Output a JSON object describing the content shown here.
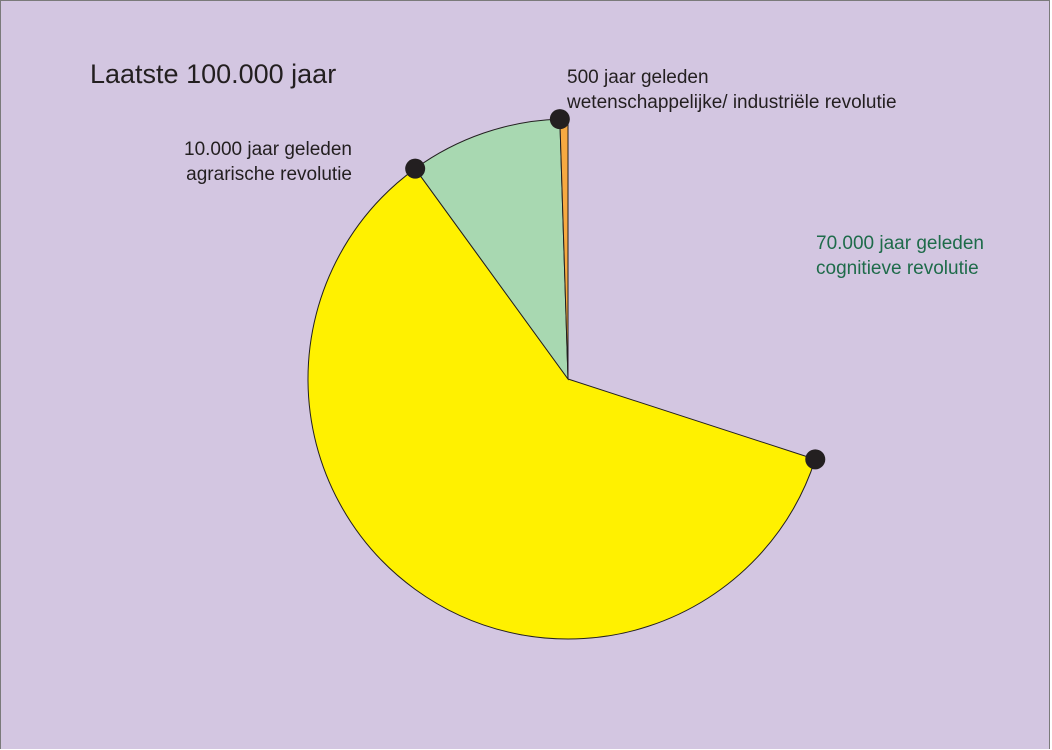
{
  "title": "Laatste 100.000 jaar",
  "colors": {
    "background": "#d3c6e1",
    "before_cognitive": "#d3c6e1",
    "cognitive_to_agrarian": "#fff100",
    "agrarian_to_scientific": "#a8d8b1",
    "scientific_to_now": "#f7a941",
    "marker": "#231f20",
    "cognitive_label": "#1e6b4a"
  },
  "timeline": {
    "total_years": 100000,
    "segments": [
      {
        "id": "before_cognitive",
        "from_years_ago": 100000,
        "to_years_ago": 70000
      },
      {
        "id": "cognitive_to_agrarian",
        "from_years_ago": 70000,
        "to_years_ago": 10000
      },
      {
        "id": "agrarian_to_scientific",
        "from_years_ago": 10000,
        "to_years_ago": 500
      },
      {
        "id": "scientific_to_now",
        "from_years_ago": 500,
        "to_years_ago": 0
      }
    ]
  },
  "events": [
    {
      "id": "cognitive",
      "years_ago": 70000,
      "line1": "70.000 jaar geleden",
      "line2": "cognitieve revolutie"
    },
    {
      "id": "agrarian",
      "years_ago": 10000,
      "line1": "10.000 jaar geleden",
      "line2": "agrarische revolutie"
    },
    {
      "id": "scientific",
      "years_ago": 500,
      "line1": "500 jaar geleden",
      "line2": "wetenschappelijke/ industriële revolutie"
    }
  ]
}
